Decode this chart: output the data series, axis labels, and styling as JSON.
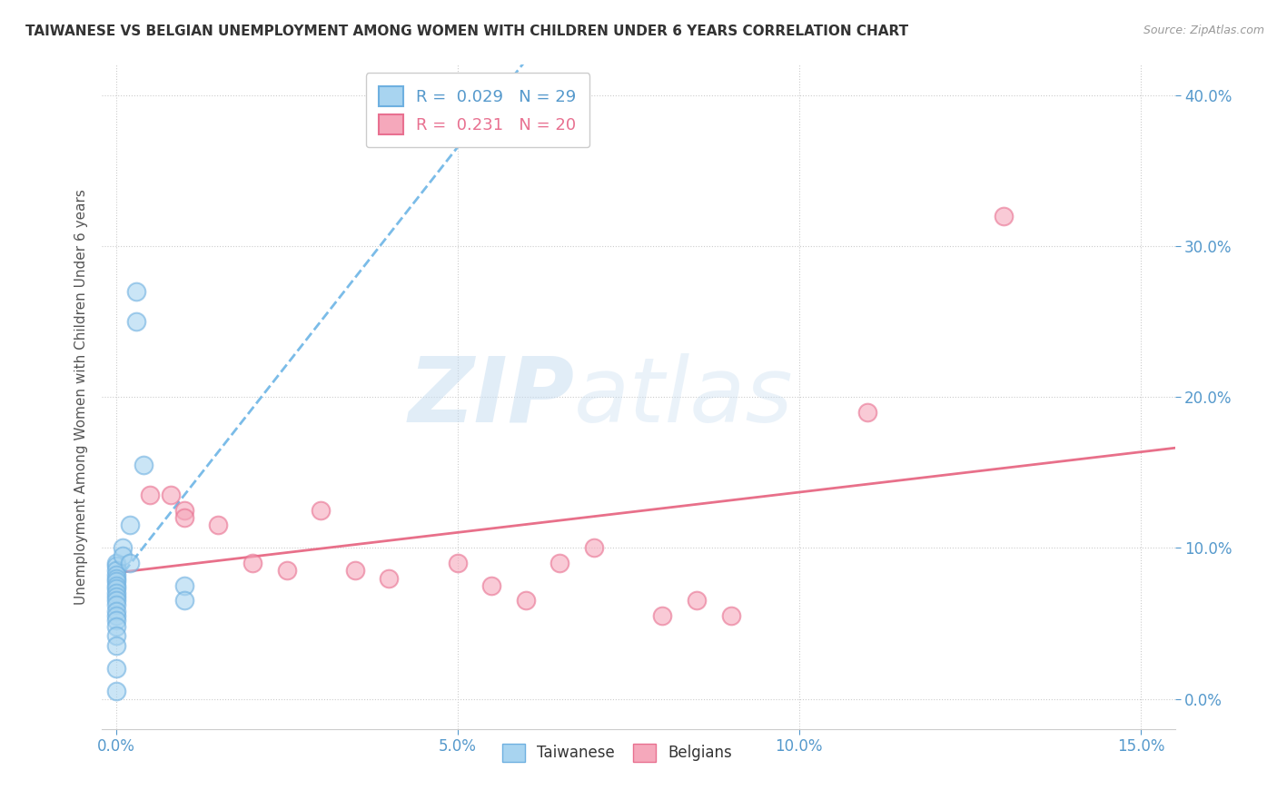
{
  "title": "TAIWANESE VS BELGIAN UNEMPLOYMENT AMONG WOMEN WITH CHILDREN UNDER 6 YEARS CORRELATION CHART",
  "source": "Source: ZipAtlas.com",
  "ylabel": "Unemployment Among Women with Children Under 6 years",
  "xlim": [
    -0.002,
    0.155
  ],
  "ylim": [
    -0.02,
    0.42
  ],
  "xticks": [
    0.0,
    0.05,
    0.1,
    0.15
  ],
  "yticks": [
    0.0,
    0.1,
    0.2,
    0.3,
    0.4
  ],
  "taiwanese_x": [
    0.0,
    0.0,
    0.0,
    0.0,
    0.0,
    0.0,
    0.0,
    0.0,
    0.0,
    0.0,
    0.0,
    0.0,
    0.0,
    0.0,
    0.0,
    0.0,
    0.0,
    0.0,
    0.0,
    0.0,
    0.001,
    0.001,
    0.002,
    0.002,
    0.003,
    0.003,
    0.004,
    0.01,
    0.01
  ],
  "taiwanese_y": [
    0.09,
    0.088,
    0.085,
    0.082,
    0.08,
    0.078,
    0.075,
    0.073,
    0.07,
    0.068,
    0.065,
    0.062,
    0.058,
    0.055,
    0.052,
    0.048,
    0.042,
    0.035,
    0.02,
    0.005,
    0.1,
    0.095,
    0.115,
    0.09,
    0.27,
    0.25,
    0.155,
    0.075,
    0.065
  ],
  "belgian_x": [
    0.005,
    0.008,
    0.01,
    0.01,
    0.015,
    0.02,
    0.025,
    0.03,
    0.035,
    0.04,
    0.05,
    0.055,
    0.06,
    0.065,
    0.07,
    0.08,
    0.085,
    0.09,
    0.11,
    0.13
  ],
  "belgian_y": [
    0.135,
    0.135,
    0.125,
    0.12,
    0.115,
    0.09,
    0.085,
    0.125,
    0.085,
    0.08,
    0.09,
    0.075,
    0.065,
    0.09,
    0.1,
    0.055,
    0.065,
    0.055,
    0.19,
    0.32
  ],
  "taiwanese_color": "#A8D4F0",
  "belgian_color": "#F5A8BB",
  "taiwanese_edge_color": "#6EB0E0",
  "belgian_edge_color": "#E87090",
  "taiwanese_line_color": "#7BBCE8",
  "belgian_line_color": "#E8708A",
  "legend_r1": "R =  0.029   N = 29",
  "legend_r2": "R =  0.231   N = 20",
  "watermark_zip": "ZIP",
  "watermark_atlas": "atlas",
  "background_color": "#FFFFFF",
  "grid_color": "#CCCCCC",
  "tick_color": "#5599CC",
  "title_color": "#333333",
  "source_color": "#999999",
  "ylabel_color": "#555555"
}
